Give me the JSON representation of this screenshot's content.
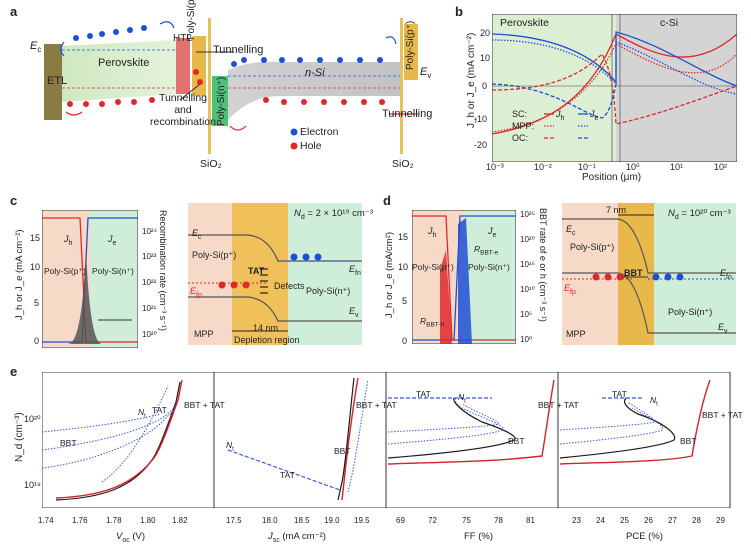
{
  "panel_labels": {
    "a": "a",
    "b": "b",
    "c": "c",
    "d": "d",
    "e": "e"
  },
  "a": {
    "ec": "E",
    "ec_sub": "c",
    "etl": "ETL",
    "perovskite": "Perovskite",
    "htl": "HTL",
    "polysi_p": "Poly-Si(p⁺)",
    "polysi_n": "Poly-Si(n⁺)",
    "nsi": "n-Si",
    "polysi_p_right": "Poly-Si(p⁺)",
    "ev": "E",
    "ev_sub": "v",
    "tunnelling_top": "Tunnelling",
    "tunnelling_recomb": "Tunnelling\nand\nrecombination",
    "tunnelling_right": "Tunnelling",
    "legend_electron": "Electron",
    "legend_hole": "Hole",
    "sio2_left": "SiO₂",
    "sio2_right": "SiO₂",
    "colors": {
      "electron": "#1f4fd6",
      "hole": "#e0282b",
      "perovskite": "#cfe8c2",
      "htl": "#e27270",
      "ntype": "#c9c9c9",
      "etl": "#8a7a43",
      "gold": "#e8b84a"
    }
  },
  "b": {
    "region_left": "Perovskite",
    "region_right": "c-Si",
    "ylabel": "J_h or J_e (mA cm⁻²)",
    "xlabel": "Position (μm)",
    "legend": {
      "sc": "SC:",
      "mpp": "MPP:",
      "oc": "OC:",
      "jh": "J",
      "jh_sub": "h",
      "je": "J",
      "je_sub": "e"
    },
    "yticks": [
      "20",
      "10",
      "0",
      "-10",
      "-20"
    ],
    "xticks": [
      "10⁻³",
      "10⁻²",
      "10⁻¹",
      "10⁰",
      "10¹",
      "10²"
    ]
  },
  "c": {
    "ylabel_left": "J_h or J_e (mA cm⁻²)",
    "ylabel_right": "Recombination rate (cm⁻³ s⁻¹)",
    "yticks_left": [
      "15",
      "10",
      "5",
      "0"
    ],
    "yticks_right": [
      "10²⁴",
      "10²³",
      "10²²",
      "10²¹",
      "10²⁰"
    ],
    "jh": "J",
    "jh_sub": "h",
    "je": "J",
    "je_sub": "e",
    "poly_p": "Poly-Si(p⁺)",
    "poly_n": "Poly-Si(n⁺)",
    "nd": "N",
    "nd_sub": "d",
    "nd_val": " = 2 × 10¹⁹ cm⁻³",
    "ec": "E",
    "ec_sub": "c",
    "efn": "E",
    "efn_sub": "fn",
    "efp": "E",
    "efp_sub": "fp",
    "ev": "E",
    "ev_sub": "v",
    "tat": "TAT",
    "defects": "Defects",
    "mpp": "MPP",
    "width": "14 nm",
    "depletion": "Depletion region"
  },
  "d": {
    "ylabel_left": "J_h or J_e (mA/cm²)",
    "ylabel_right": "BBT rate of e or h (cm⁻³ s⁻¹)",
    "yticks_left": [
      "15",
      "10",
      "5",
      "0"
    ],
    "yticks_right": [
      "10²⁵",
      "10²⁰",
      "10¹⁵",
      "10¹⁰",
      "10⁵",
      "10⁰"
    ],
    "jh": "J",
    "jh_sub": "h",
    "je": "J",
    "je_sub": "e",
    "rbbt_e": "R",
    "rbbt_e_sub": "BBT-e",
    "rbbt_h": "R",
    "rbbt_h_sub": "BBT-h",
    "poly_p": "Poly-Si(p⁺)",
    "poly_n": "Poly-Si(n⁺)",
    "nd": "N",
    "nd_sub": "d",
    "nd_val": " = 10²⁰ cm⁻³",
    "width": "7 nm",
    "bbt": "BBT",
    "ec": "E",
    "ec_sub": "c",
    "efn": "E",
    "efn_sub": "fn",
    "efp": "E",
    "efp_sub": "fp",
    "ev": "E",
    "ev_sub": "v",
    "mpp": "MPP"
  },
  "e": {
    "ylabel": "N_d (cm⁻³)",
    "yticks": [
      "10²⁰",
      "10¹⁹"
    ],
    "voc": {
      "xlabel": "V",
      "xsub": "oc",
      "unit": " (V)",
      "ticks": [
        "1.74",
        "1.76",
        "1.78",
        "1.80",
        "1.82"
      ],
      "bbt": "BBT",
      "tat": "TAT",
      "nt": "N",
      "nt_sub": "t",
      "both": "BBT + TAT"
    },
    "jsc": {
      "xlabel": "J",
      "xsub": "sc",
      "unit": " (mA cm⁻²)",
      "ticks": [
        "17.5",
        "18.0",
        "18.5",
        "19.0",
        "19.5"
      ],
      "bbt": "BBT",
      "tat": "TAT",
      "nt": "N",
      "nt_sub": "t",
      "both": "BBT + TAT"
    },
    "ff": {
      "xlabel": "FF (%)",
      "ticks": [
        "69",
        "72",
        "75",
        "78",
        "81"
      ],
      "bbt": "BBT",
      "tat": "TAT",
      "nt": "N",
      "nt_sub": "t",
      "both": "BBT + TAT"
    },
    "pce": {
      "xlabel": "PCE (%)",
      "ticks": [
        "23",
        "24",
        "25",
        "26",
        "27",
        "28",
        "29"
      ],
      "bbt": "BBT",
      "tat": "TAT",
      "nt": "N",
      "nt_sub": "t",
      "both": "BBT + TAT"
    }
  }
}
